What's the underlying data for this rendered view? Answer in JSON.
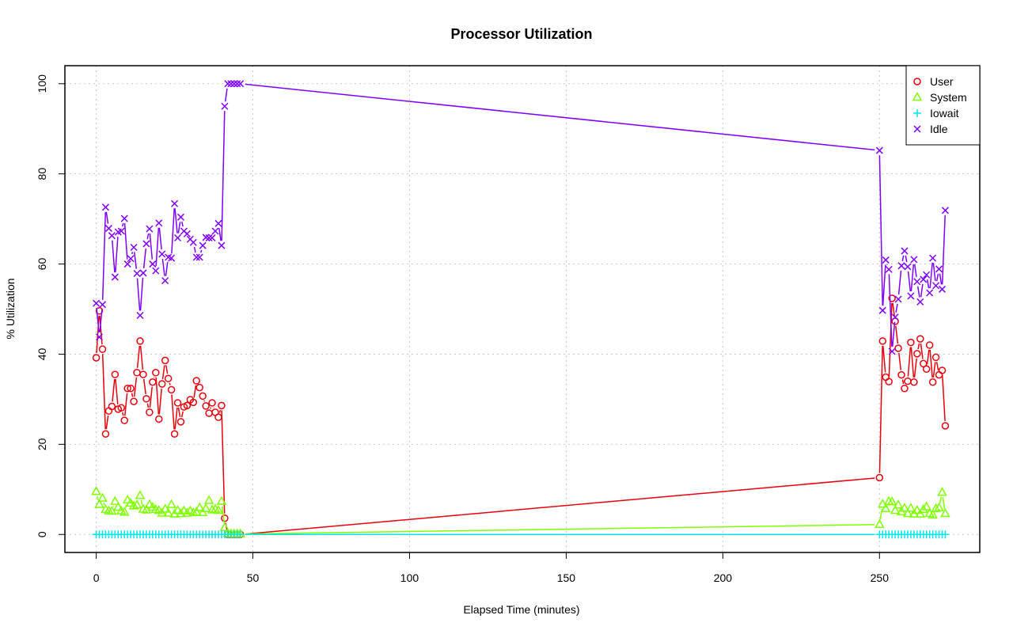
{
  "chart_data": {
    "type": "line",
    "title": "Processor Utilization",
    "xlabel": "Elapsed Time (minutes)",
    "ylabel": "% Utilization",
    "xlim": [
      -10,
      282
    ],
    "ylim": [
      -4,
      104
    ],
    "xticks": [
      0,
      50,
      100,
      150,
      200,
      250
    ],
    "yticks": [
      0,
      20,
      40,
      60,
      80,
      100
    ],
    "grid": true,
    "legend_position": "top-right",
    "x": [
      0,
      1,
      2,
      3,
      4,
      5,
      6,
      7,
      8,
      9,
      10,
      11,
      12,
      13,
      14,
      15,
      16,
      17,
      18,
      19,
      20,
      21,
      22,
      23,
      24,
      25,
      26,
      27,
      28,
      29,
      30,
      31,
      32,
      33,
      34,
      35,
      36,
      37,
      38,
      39,
      40,
      41,
      42,
      43,
      44,
      45,
      46,
      250,
      251,
      252,
      253,
      254,
      255,
      256,
      257,
      258,
      259,
      260,
      261,
      262,
      263,
      264,
      265,
      266,
      267,
      268,
      269,
      270,
      271
    ],
    "series": [
      {
        "name": "User",
        "color": "#e8000b",
        "marker": "circle",
        "values": [
          39.2,
          49.6,
          41.1,
          22.3,
          27.4,
          28.4,
          35.5,
          27.8,
          28.1,
          25.3,
          32.4,
          32.4,
          29.5,
          35.9,
          42.9,
          35.5,
          30.1,
          27.1,
          33.8,
          35.9,
          25.6,
          33.4,
          38.6,
          34.6,
          32.1,
          22.3,
          29.2,
          25.0,
          28.3,
          28.6,
          29.9,
          29.3,
          34.1,
          32.6,
          30.7,
          28.5,
          26.9,
          29.2,
          27.1,
          26.0,
          28.6,
          3.6,
          0,
          0,
          0,
          0,
          0,
          12.6,
          42.9,
          34.9,
          33.9,
          52.4,
          47.3,
          41.3,
          35.4,
          32.4,
          34.0,
          42.6,
          33.8,
          40.1,
          43.4,
          37.9,
          36.7,
          42.0,
          33.8,
          39.3,
          35.4,
          36.4,
          24.1
        ]
      },
      {
        "name": "System",
        "color": "#80ff00",
        "marker": "triangle",
        "values": [
          9.5,
          6.6,
          8.0,
          5.5,
          5.2,
          5.1,
          7.3,
          6.0,
          5.2,
          4.9,
          7.6,
          6.9,
          6.3,
          6.5,
          8.6,
          5.6,
          5.4,
          6.6,
          6.0,
          5.5,
          5.3,
          4.7,
          5.6,
          4.7,
          6.6,
          4.5,
          5.3,
          4.6,
          5.2,
          4.7,
          5.2,
          4.8,
          4.9,
          5.9,
          4.8,
          5.7,
          7.5,
          5.4,
          5.6,
          5.3,
          7.3,
          1.5,
          0.2,
          0.1,
          0.1,
          0.1,
          0.1,
          2.2,
          6.7,
          5.7,
          7.3,
          7.2,
          5.3,
          6.5,
          5.0,
          5.8,
          4.6,
          5.8,
          4.5,
          5.3,
          4.5,
          5.5,
          6.1,
          4.6,
          4.3,
          5.7,
          5.9,
          9.3,
          4.6
        ]
      },
      {
        "name": "Iowait",
        "color": "#00e5ee",
        "marker": "plus",
        "values": [
          0,
          0,
          0,
          0,
          0,
          0,
          0,
          0,
          0,
          0,
          0,
          0,
          0,
          0,
          0,
          0,
          0,
          0,
          0,
          0,
          0,
          0,
          0,
          0,
          0,
          0,
          0,
          0,
          0,
          0,
          0,
          0,
          0,
          0,
          0,
          0,
          0,
          0,
          0,
          0,
          0,
          0,
          0,
          0,
          0,
          0,
          0,
          0,
          0,
          0,
          0,
          0,
          0,
          0,
          0,
          0,
          0,
          0,
          0,
          0,
          0,
          0,
          0,
          0,
          0,
          0,
          0,
          0,
          0
        ]
      },
      {
        "name": "Idle",
        "color": "#8000ff",
        "marker": "cross",
        "values": [
          51.3,
          43.8,
          51.0,
          72.6,
          67.9,
          66.3,
          57.1,
          67.1,
          67.3,
          70.1,
          60.0,
          61.2,
          63.7,
          57.9,
          48.6,
          58.0,
          64.5,
          67.8,
          60.0,
          58.5,
          69.1,
          62.2,
          56.3,
          61.5,
          61.3,
          73.4,
          65.8,
          70.4,
          67.3,
          66.7,
          65.5,
          64.8,
          61.5,
          61.5,
          64.1,
          65.9,
          65.8,
          65.8,
          67.3,
          69.0,
          64.1,
          95.0,
          100,
          100,
          100,
          100,
          100,
          85.2,
          49.7,
          60.9,
          58.8,
          40.6,
          48.2,
          52.2,
          59.6,
          62.9,
          59.4,
          52.9,
          61.0,
          56.1,
          51.6,
          56.6,
          57.6,
          53.6,
          61.3,
          55.2,
          58.9,
          54.4,
          71.9
        ]
      }
    ]
  }
}
